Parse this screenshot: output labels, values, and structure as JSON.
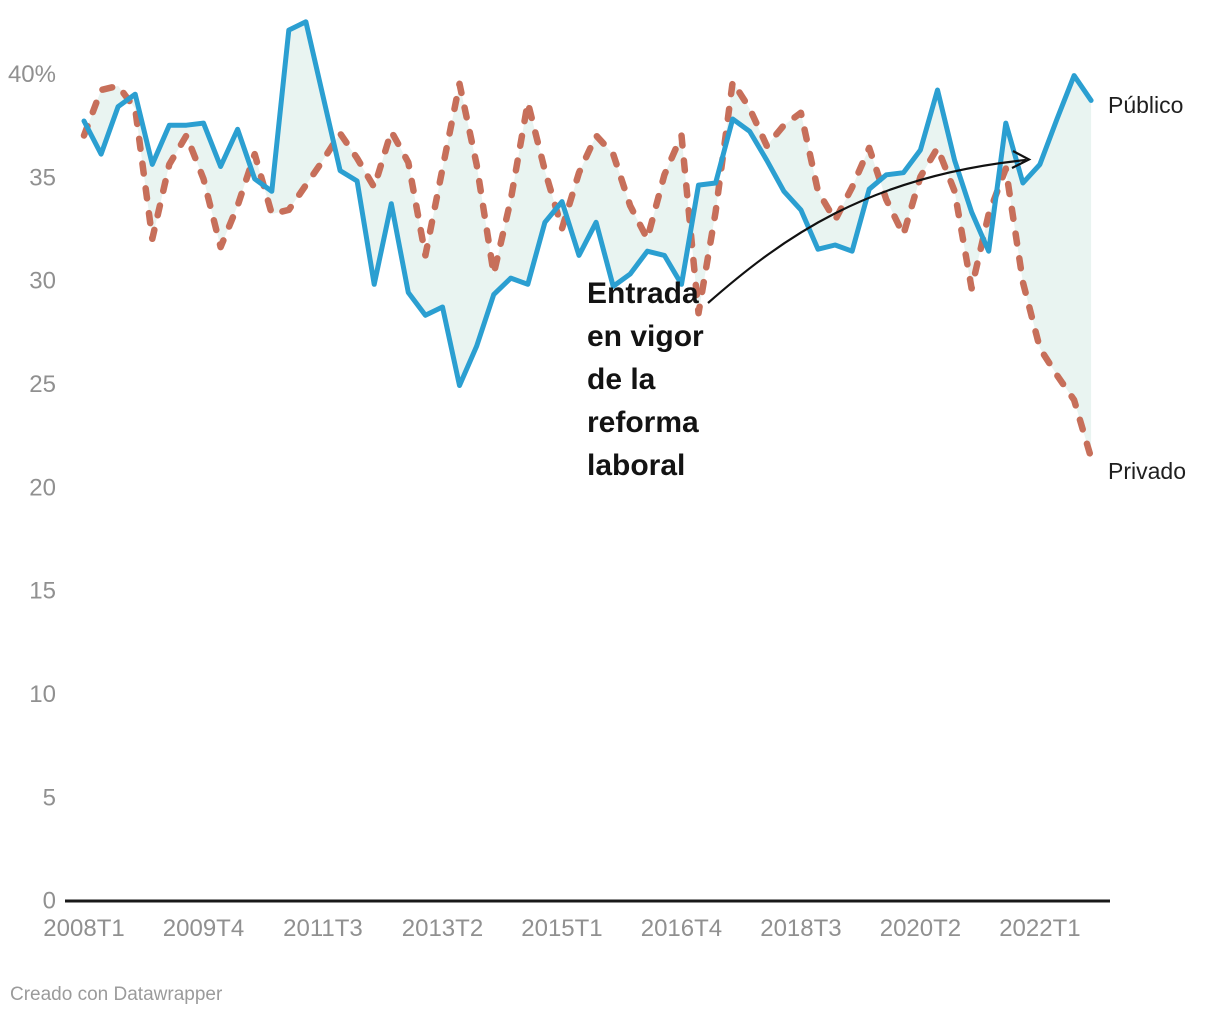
{
  "chart_data": {
    "type": "line",
    "title": "",
    "xlabel": "",
    "ylabel": "",
    "grid": false,
    "legend_position": "right-inline-labels",
    "ylim": [
      0,
      43
    ],
    "categories": [
      "2008T1",
      "2008T2",
      "2008T3",
      "2008T4",
      "2009T1",
      "2009T2",
      "2009T3",
      "2009T4",
      "2010T1",
      "2010T2",
      "2010T3",
      "2010T4",
      "2011T1",
      "2011T2",
      "2011T3",
      "2011T4",
      "2012T1",
      "2012T2",
      "2012T3",
      "2012T4",
      "2013T1",
      "2013T2",
      "2013T3",
      "2013T4",
      "2014T1",
      "2014T2",
      "2014T3",
      "2014T4",
      "2015T1",
      "2015T2",
      "2015T3",
      "2015T4",
      "2016T1",
      "2016T2",
      "2016T3",
      "2016T4",
      "2017T1",
      "2017T2",
      "2017T3",
      "2017T4",
      "2018T1",
      "2018T2",
      "2018T3",
      "2018T4",
      "2019T1",
      "2019T2",
      "2019T3",
      "2019T4",
      "2020T1",
      "2020T2",
      "2020T3",
      "2020T4",
      "2021T1",
      "2021T2",
      "2021T3",
      "2021T4",
      "2022T1",
      "2022T2",
      "2022T3",
      "2022T4"
    ],
    "x_tick_indices": [
      0,
      7,
      14,
      21,
      28,
      35,
      42,
      49,
      56
    ],
    "y_ticks": {
      "values": [
        0,
        5,
        10,
        15,
        20,
        25,
        30,
        35,
        40
      ],
      "labels": [
        "0",
        "5",
        "10",
        "15",
        "20",
        "25",
        "30",
        "35",
        "40%"
      ]
    },
    "series": [
      {
        "name": "Público",
        "style": "solid",
        "color": "#2b9fd1",
        "values": [
          37.7,
          36.1,
          38.4,
          39.0,
          35.6,
          37.5,
          37.5,
          37.6,
          35.5,
          37.3,
          34.9,
          34.3,
          42.1,
          42.5,
          38.9,
          35.3,
          34.8,
          29.8,
          33.7,
          29.4,
          28.3,
          28.7,
          24.9,
          26.8,
          29.3,
          30.1,
          29.8,
          32.8,
          33.8,
          31.2,
          32.8,
          29.7,
          30.3,
          31.4,
          31.2,
          29.8,
          34.6,
          34.7,
          37.8,
          37.2,
          35.8,
          34.3,
          33.4,
          31.5,
          31.7,
          31.4,
          34.4,
          35.1,
          35.2,
          36.3,
          39.2,
          35.8,
          33.3,
          31.4,
          37.6,
          34.7,
          35.6,
          37.8,
          39.9,
          38.7
        ]
      },
      {
        "name": "Privado",
        "style": "dashed",
        "color": "#c76f5a",
        "values": [
          37.0,
          39.2,
          39.4,
          38.3,
          32.0,
          35.6,
          37.0,
          34.9,
          31.6,
          33.6,
          36.1,
          33.2,
          33.4,
          34.6,
          35.8,
          37.1,
          35.9,
          34.5,
          37.2,
          35.7,
          31.2,
          35.4,
          39.5,
          35.6,
          30.3,
          33.9,
          38.6,
          35.3,
          32.5,
          35.2,
          37.0,
          36.1,
          33.6,
          32.0,
          35.1,
          37.0,
          28.4,
          33.3,
          39.6,
          38.3,
          36.5,
          37.5,
          38.1,
          34.3,
          32.9,
          34.5,
          36.4,
          33.9,
          32.2,
          35.0,
          36.4,
          34.3,
          29.6,
          33.2,
          35.4,
          29.9,
          26.7,
          25.4,
          24.2,
          21.4
        ]
      }
    ],
    "fill_between_color": "#e9f4f1"
  },
  "annotation": {
    "text": "Entrada\nen vigor\nde la\nreforma\nlaboral"
  },
  "footer": {
    "credit": "Creado con Datawrapper"
  },
  "colors": {
    "axis_text": "#909090",
    "axis_line": "#191919",
    "annotation_text": "#131313",
    "series_label_text": "#1f1f1f",
    "arrow": "#111111",
    "background": "#ffffff"
  }
}
